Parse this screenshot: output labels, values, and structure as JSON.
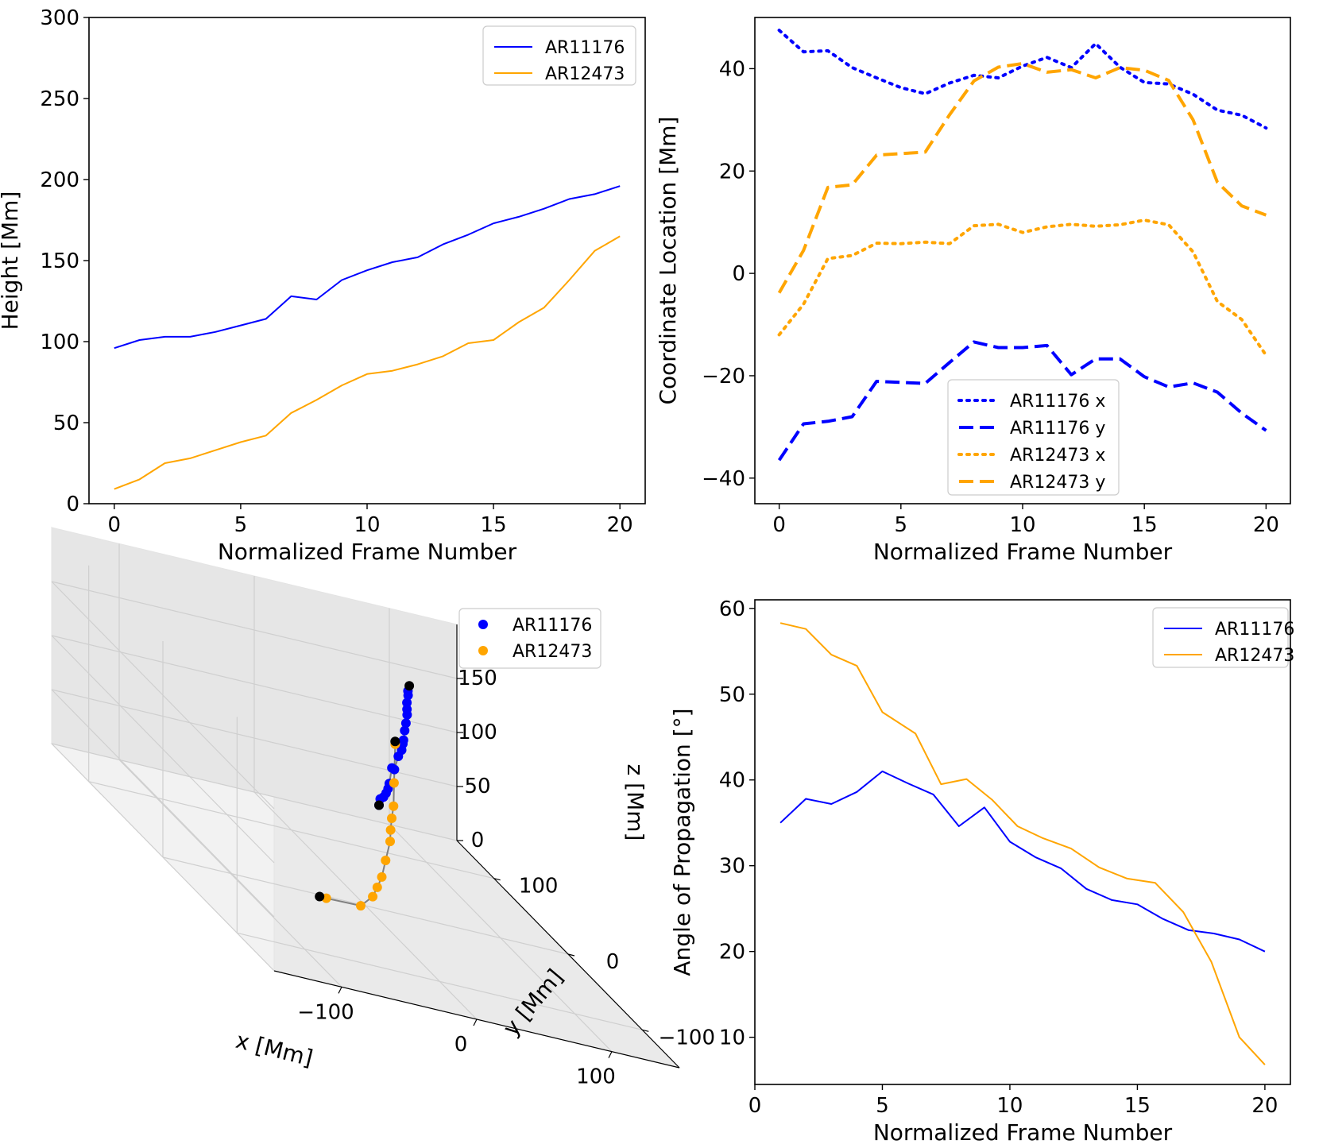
{
  "chart_data": [
    {
      "type": "line",
      "id": "height",
      "xlabel": "Normalized Frame Number",
      "ylabel": "Height [Mm]",
      "xlim": [
        -1,
        21
      ],
      "ylim": [
        0,
        300
      ],
      "xticks": [
        0,
        5,
        10,
        15,
        20
      ],
      "yticks": [
        0,
        50,
        100,
        150,
        200,
        250,
        300
      ],
      "legend": "top-right",
      "series": [
        {
          "name": "AR11176",
          "color": "#0000ff",
          "dash": "solid",
          "x": [
            0,
            1,
            2,
            3,
            4,
            5,
            6,
            7,
            8,
            9,
            10,
            11,
            12,
            13,
            14,
            15,
            16,
            17,
            18,
            19,
            20
          ],
          "values": [
            96,
            101,
            103,
            103,
            106,
            110,
            114,
            128,
            126,
            138,
            144,
            149,
            152,
            160,
            166,
            173,
            177,
            182,
            188,
            191,
            196
          ]
        },
        {
          "name": "AR12473",
          "color": "#ffa500",
          "dash": "solid",
          "x": [
            0,
            1,
            2,
            3,
            4,
            5,
            6,
            7,
            8,
            9,
            10,
            11,
            12,
            13,
            14,
            15,
            16,
            17,
            18,
            19,
            20
          ],
          "values": [
            9,
            15,
            25,
            28,
            33,
            38,
            42,
            56,
            64,
            73,
            80,
            82,
            86,
            91,
            99,
            101,
            112,
            121,
            138,
            156,
            165
          ]
        }
      ]
    },
    {
      "type": "line",
      "id": "coords",
      "xlabel": "Normalized Frame Number",
      "ylabel": "Coordinate Location [Mm]",
      "xlim": [
        -1,
        21
      ],
      "ylim": [
        -45,
        50
      ],
      "xticks": [
        0,
        5,
        10,
        15,
        20
      ],
      "yticks": [
        -40,
        -20,
        0,
        20,
        40
      ],
      "ytick_labels": [
        "−40",
        "−20",
        "0",
        "20",
        "40"
      ],
      "legend": "bottom-center",
      "series": [
        {
          "name": "AR11176 x",
          "color": "#0000ff",
          "dash": "dotted",
          "x": [
            0,
            1,
            2,
            3,
            4,
            5,
            6,
            7,
            8,
            9,
            10,
            11,
            12,
            13,
            14,
            15,
            16,
            17,
            18,
            19,
            20
          ],
          "values": [
            47.5,
            43.3,
            43.5,
            40.2,
            38.2,
            36.3,
            35.1,
            37.2,
            38.7,
            38.2,
            40.5,
            42.2,
            40.2,
            44.9,
            40.3,
            37.3,
            37.0,
            35.0,
            31.9,
            30.9,
            28.4
          ]
        },
        {
          "name": " AR11176 y",
          "color": "#0000ff",
          "dash": "dashed",
          "x": [
            0,
            1,
            2,
            3,
            4,
            5,
            6,
            7,
            8,
            9,
            10,
            11,
            12,
            13,
            14,
            15,
            16,
            17,
            18,
            19,
            20
          ],
          "values": [
            -36.5,
            -29.4,
            -28.9,
            -28.0,
            -21.1,
            -21.3,
            -21.5,
            -17.4,
            -13.4,
            -14.5,
            -14.5,
            -14.1,
            -19.8,
            -16.7,
            -16.7,
            -20.2,
            -22.2,
            -21.4,
            -23.2,
            -27.3,
            -30.7
          ]
        },
        {
          "name": "AR12473 x",
          "color": "#ffa500",
          "dash": "dotted",
          "x": [
            0,
            1,
            2,
            3,
            4,
            5,
            6,
            7,
            8,
            9,
            10,
            11,
            12,
            13,
            14,
            15,
            16,
            17,
            18,
            19,
            20
          ],
          "values": [
            -12.0,
            -6.0,
            2.9,
            3.5,
            5.9,
            5.8,
            6.1,
            5.8,
            9.3,
            9.6,
            8.0,
            9.1,
            9.6,
            9.2,
            9.5,
            10.4,
            9.5,
            4.2,
            -5.5,
            -9.0,
            -16.0
          ]
        },
        {
          "name": "AR12473 y",
          "color": "#ffa500",
          "dash": "dashed",
          "x": [
            0,
            1,
            2,
            3,
            4,
            5,
            6,
            7,
            8,
            9,
            10,
            11,
            12,
            13,
            14,
            15,
            16,
            17,
            18,
            19,
            20
          ],
          "values": [
            -3.8,
            4.5,
            16.8,
            17.3,
            23.1,
            23.4,
            23.7,
            31.0,
            37.6,
            40.3,
            41.0,
            39.3,
            39.8,
            38.2,
            40.2,
            39.7,
            37.7,
            30.0,
            17.8,
            13.2,
            11.4
          ]
        }
      ]
    },
    {
      "type": "scatter3d",
      "id": "trajectory",
      "xlabel": "x [Mm]",
      "ylabel": "y [Mm]",
      "zlabel": "z [Mm]",
      "xlim": [
        -150,
        150
      ],
      "ylim": [
        -150,
        150
      ],
      "zlim": [
        0,
        200
      ],
      "xticks": [
        -100,
        0,
        100
      ],
      "xtick_labels": [
        "−100",
        "0",
        "100"
      ],
      "yticks": [
        -100,
        0,
        100
      ],
      "ytick_labels": [
        "−100",
        "0",
        "100"
      ],
      "zticks": [
        0,
        50,
        100,
        150
      ],
      "legend": "top-right",
      "series": [
        {
          "name": "AR11176",
          "color": "#0000ff",
          "points": [
            [
              10,
              0,
              96
            ],
            [
              12,
              2,
              101
            ],
            [
              15,
              3,
              103
            ],
            [
              18,
              5,
              106
            ],
            [
              20,
              6,
              110
            ],
            [
              22,
              8,
              114
            ],
            [
              25,
              10,
              128
            ],
            [
              28,
              12,
              126
            ],
            [
              32,
              14,
              138
            ],
            [
              35,
              15,
              144
            ],
            [
              37,
              17,
              149
            ],
            [
              38,
              18,
              152
            ],
            [
              40,
              20,
              160
            ],
            [
              42,
              22,
              166
            ],
            [
              44,
              24,
              173
            ],
            [
              45,
              26,
              177
            ],
            [
              46,
              28,
              182
            ],
            [
              48,
              30,
              188
            ],
            [
              49,
              32,
              191
            ]
          ]
        },
        {
          "name": "AR12473",
          "color": "#ffa500",
          "points": [
            [
              -40,
              -20,
              9
            ],
            [
              -20,
              -30,
              15
            ],
            [
              -10,
              -28,
              25
            ],
            [
              -5,
              -25,
              33
            ],
            [
              0,
              -22,
              42
            ],
            [
              5,
              -18,
              56
            ],
            [
              10,
              -15,
              73
            ],
            [
              12,
              -12,
              82
            ],
            [
              15,
              -8,
              91
            ],
            [
              18,
              -5,
              101
            ],
            [
              20,
              -2,
              121
            ],
            [
              22,
              0,
              156
            ]
          ]
        },
        {
          "name": "endpoints",
          "color": "#000000",
          "legend": false,
          "points": [
            [
              10,
              0,
              96
            ],
            [
              -45,
              -20,
              9
            ],
            [
              0,
              -40,
              180
            ],
            [
              50,
              32,
              196
            ]
          ]
        }
      ]
    },
    {
      "type": "line",
      "id": "angle",
      "xlabel": "Normalized Frame Number",
      "ylabel": "Angle of Propagation [°]",
      "xlim": [
        0,
        21
      ],
      "ylim": [
        4.5,
        61
      ],
      "xticks": [
        0,
        5,
        10,
        15,
        20
      ],
      "yticks": [
        10,
        20,
        30,
        40,
        50,
        60
      ],
      "legend": "top-right",
      "series": [
        {
          "name": "AR11176",
          "color": "#0000ff",
          "dash": "solid",
          "x": [
            1,
            2,
            3,
            4,
            5,
            6,
            7,
            8,
            9,
            10,
            11,
            12,
            13,
            14,
            15,
            16,
            17,
            18,
            19,
            20
          ],
          "values": [
            35.0,
            37.8,
            37.2,
            38.6,
            41.0,
            39.6,
            38.3,
            34.6,
            36.8,
            32.8,
            31.0,
            29.7,
            27.3,
            26.0,
            25.5,
            23.8,
            22.5,
            22.1,
            21.4,
            20.0
          ]
        },
        {
          "name": "AR12473",
          "color": "#ffa500",
          "dash": "solid",
          "x": [
            1,
            2,
            3,
            4,
            5,
            6.3,
            7.3,
            8.3,
            9.3,
            10.3,
            11.3,
            12.4,
            13.5,
            14.6,
            15.7,
            16.8,
            17.9,
            19,
            20
          ],
          "values": [
            58.3,
            57.6,
            54.6,
            53.3,
            47.9,
            45.4,
            39.5,
            40.1,
            37.7,
            34.6,
            33.2,
            32.0,
            29.8,
            28.5,
            28.0,
            24.6,
            18.8,
            10.0,
            6.8
          ]
        }
      ]
    }
  ]
}
